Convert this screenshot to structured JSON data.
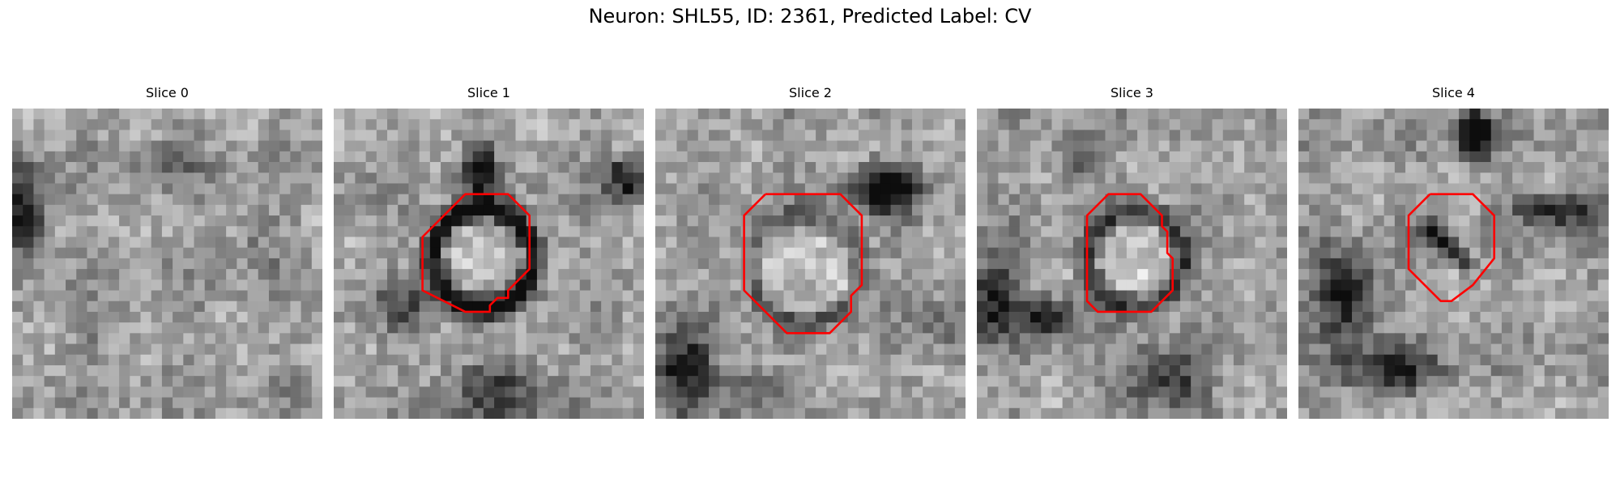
{
  "figure": {
    "title": "Neuron: SHL55, ID: 2361, Predicted Label: CV"
  },
  "panels": [
    {
      "title": "Slice 0",
      "has_contour": false,
      "contour": []
    },
    {
      "title": "Slice 1",
      "has_contour": true,
      "contour": [
        [
          14.3,
          8
        ],
        [
          16.3,
          8
        ],
        [
          18.3,
          10
        ],
        [
          18.3,
          15
        ],
        [
          16.3,
          17
        ],
        [
          16.3,
          17.7
        ],
        [
          15.3,
          17.7
        ],
        [
          14.6,
          18.4
        ],
        [
          14.6,
          19
        ],
        [
          12.3,
          19
        ],
        [
          8.3,
          17
        ],
        [
          8.3,
          12
        ],
        [
          12.3,
          8
        ]
      ]
    },
    {
      "title": "Slice 2",
      "has_contour": true,
      "contour": [
        [
          10.3,
          8
        ],
        [
          17.3,
          8
        ],
        [
          19.3,
          10
        ],
        [
          19.3,
          16.5
        ],
        [
          18.3,
          17.5
        ],
        [
          18.3,
          19
        ],
        [
          16.3,
          21
        ],
        [
          12.3,
          21
        ],
        [
          8.3,
          17
        ],
        [
          8.3,
          10
        ],
        [
          10.3,
          8
        ]
      ]
    },
    {
      "title": "Slice 3",
      "has_contour": true,
      "contour": [
        [
          13.3,
          8
        ],
        [
          15.3,
          8
        ],
        [
          17.3,
          10
        ],
        [
          17.3,
          11
        ],
        [
          17.8,
          11.5
        ],
        [
          17.8,
          13.5
        ],
        [
          18.3,
          14
        ],
        [
          18.3,
          17
        ],
        [
          16.3,
          19
        ],
        [
          11.3,
          19
        ],
        [
          10.3,
          18
        ],
        [
          10.3,
          16
        ],
        [
          10.3,
          10
        ],
        [
          12.3,
          8
        ]
      ]
    },
    {
      "title": "Slice 4",
      "has_contour": true,
      "contour": [
        [
          12.3,
          8
        ],
        [
          16.3,
          8
        ],
        [
          18.3,
          10
        ],
        [
          18.3,
          14
        ],
        [
          16.3,
          16.5
        ],
        [
          16.3,
          16.5
        ],
        [
          14.3,
          18
        ],
        [
          13.3,
          18
        ],
        [
          10.3,
          15
        ],
        [
          10.3,
          10
        ],
        [
          12.3,
          8
        ]
      ]
    }
  ],
  "colors": {
    "contour": "#ff0000"
  }
}
